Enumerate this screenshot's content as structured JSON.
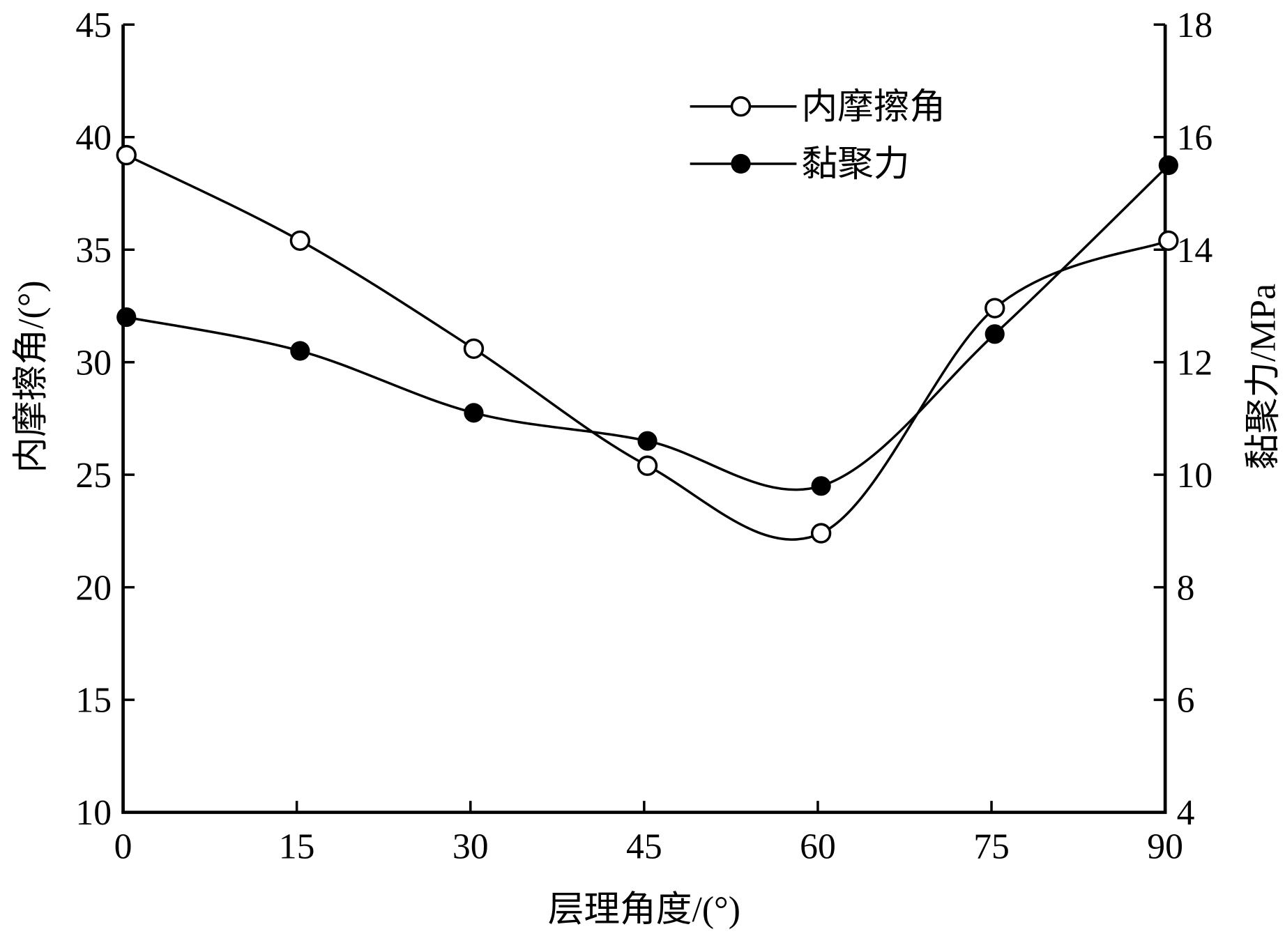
{
  "chart_data": {
    "type": "line",
    "title": "",
    "xlabel": "层理角度/(°)",
    "ylabel": "内摩擦角/(°)",
    "y2label": "黏聚力/MPa",
    "x": [
      0,
      15,
      30,
      45,
      60,
      75,
      90
    ],
    "xlim": [
      0,
      90
    ],
    "ylim": [
      10,
      45
    ],
    "y2lim": [
      4,
      18
    ],
    "xticks": [
      "0",
      "15",
      "30",
      "45",
      "60",
      "75",
      "90"
    ],
    "yticks": [
      "10",
      "15",
      "20",
      "25",
      "30",
      "35",
      "40",
      "45"
    ],
    "y2ticks": [
      "4",
      "6",
      "8",
      "10",
      "12",
      "14",
      "16",
      "18"
    ],
    "grid": false,
    "legend_position": "top-right",
    "series": [
      {
        "name": "内摩擦角",
        "axis": "left",
        "marker": "open-circle",
        "values": [
          39.2,
          35.4,
          30.6,
          25.4,
          22.4,
          32.4,
          35.4
        ]
      },
      {
        "name": "黏聚力",
        "axis": "right",
        "marker": "filled-circle",
        "values": [
          12.8,
          12.2,
          11.1,
          10.6,
          9.8,
          12.5,
          15.5
        ]
      }
    ]
  }
}
